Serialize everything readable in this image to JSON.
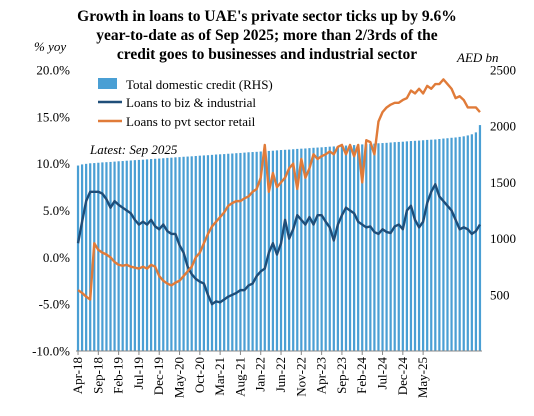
{
  "chart_data": {
    "type": "bar",
    "title": "Growth in loans to UAE's private sector ticks up by 9.6% year-to-date as of Sep 2025; more than 2/3rds of the credit goes to  businesses and industrial sector",
    "title_lines": [
      "Growth in loans to UAE's private sector ticks up by 9.6%",
      "year-to-date as of Sep 2025; more than 2/3rds of the",
      "credit goes to  businesses and industrial sector"
    ],
    "y_left_unit": "% yoy",
    "y_right_unit": "AED bn",
    "note": "Latest: Sep 2025",
    "y_left": {
      "min": -10,
      "max": 20,
      "ticks": [
        "20.0%",
        "15.0%",
        "10.0%",
        "5.0%",
        "0.0%",
        "-5.0%",
        "-10.0%"
      ],
      "tick_values": [
        20,
        15,
        10,
        5,
        0,
        -5,
        -10
      ]
    },
    "y_right": {
      "min": 0,
      "max": 2500,
      "ticks": [
        "2500",
        "2000",
        "1500",
        "1000",
        "500"
      ],
      "tick_values": [
        2500,
        2000,
        1500,
        1000,
        500
      ]
    },
    "x_ticks": [
      "Apr-18",
      "Sep-18",
      "Feb-19",
      "Jul-19",
      "Dec-19",
      "May-20",
      "Oct-20",
      "Mar-21",
      "Aug-21",
      "Jan-22",
      "Jun-22",
      "Nov-22",
      "Apr-23",
      "Sep-23",
      "Feb-24",
      "Jul-24",
      "Dec-24",
      "May-25"
    ],
    "x_start": "Apr-18",
    "x_end": "Sep-25",
    "legend": [
      "Total domestic credit (RHS)",
      "Loans to biz & industrial",
      "Loans to pvt sector retail"
    ],
    "colors": {
      "bars": "#4a9fd4",
      "biz": "#1f4e79",
      "retail": "#e07b39"
    },
    "series": [
      {
        "name": "Total domestic credit (RHS)",
        "axis": "right",
        "values": [
          1650,
          1660,
          1665,
          1670,
          1672,
          1675,
          1678,
          1680,
          1682,
          1685,
          1688,
          1690,
          1693,
          1695,
          1698,
          1700,
          1702,
          1705,
          1708,
          1710,
          1712,
          1715,
          1718,
          1720,
          1723,
          1725,
          1728,
          1730,
          1732,
          1735,
          1738,
          1740,
          1742,
          1745,
          1748,
          1750,
          1752,
          1755,
          1757,
          1760,
          1762,
          1765,
          1768,
          1770,
          1772,
          1775,
          1778,
          1780,
          1782,
          1785,
          1788,
          1790,
          1792,
          1795,
          1798,
          1800,
          1802,
          1805,
          1808,
          1810,
          1812,
          1815,
          1818,
          1820,
          1822,
          1825,
          1828,
          1830,
          1832,
          1835,
          1838,
          1840,
          1842,
          1845,
          1848,
          1850,
          1852,
          1855,
          1858,
          1860,
          1862,
          1865,
          1868,
          1870,
          1872,
          1875,
          1878,
          1880,
          1882,
          1886,
          1890,
          1893,
          1897,
          1900,
          1905,
          1910,
          1918,
          1928,
          1945,
          2010
        ]
      },
      {
        "name": "Loans to biz & industrial",
        "axis": "left",
        "values": [
          1.5,
          3.8,
          6.0,
          7.0,
          7.0,
          7.0,
          6.8,
          6.2,
          5.3,
          6.0,
          5.6,
          5.3,
          5.0,
          4.7,
          4.0,
          3.5,
          3.8,
          3.5,
          4.0,
          3.3,
          3.0,
          3.5,
          2.8,
          2.5,
          2.5,
          1.3,
          0.5,
          -1.0,
          -1.8,
          -2.3,
          -2.6,
          -2.8,
          -4.0,
          -5.0,
          -4.7,
          -4.8,
          -4.5,
          -4.2,
          -4.0,
          -3.8,
          -3.5,
          -3.5,
          -3.0,
          -2.8,
          -2.0,
          -1.5,
          -1.2,
          0.5,
          1.5,
          0.3,
          1.5,
          4.0,
          2.0,
          3.0,
          4.5,
          4.0,
          3.5,
          4.3,
          3.5,
          4.5,
          4.5,
          3.8,
          3.2,
          1.8,
          3.5,
          4.5,
          5.3,
          5.0,
          4.7,
          3.8,
          3.5,
          3.2,
          3.3,
          2.7,
          2.5,
          3.0,
          2.7,
          2.6,
          3.3,
          3.5,
          3.0,
          5.0,
          5.5,
          4.0,
          3.2,
          3.8,
          5.8,
          7.0,
          7.8,
          6.5,
          6.0,
          5.5,
          5.0,
          4.0,
          3.0,
          3.2,
          3.0,
          2.5,
          2.8,
          3.5
        ]
      },
      {
        "name": "Loans to pvt sector retail",
        "axis": "left",
        "values": [
          -3.5,
          -3.8,
          -4.2,
          -4.5,
          1.5,
          0.8,
          0.5,
          0.3,
          0.0,
          -0.5,
          -0.8,
          -0.9,
          -0.8,
          -1.0,
          -1.1,
          -1.2,
          -1.0,
          -1.2,
          -0.8,
          -1.0,
          -2.0,
          -2.5,
          -2.8,
          -3.0,
          -2.7,
          -2.5,
          -2.0,
          -1.5,
          -1.0,
          0.0,
          0.5,
          1.5,
          2.5,
          3.3,
          3.8,
          4.3,
          4.8,
          5.5,
          5.8,
          6.0,
          6.0,
          6.3,
          6.5,
          7.0,
          7.3,
          8.5,
          12.0,
          7.0,
          9.0,
          7.5,
          8.0,
          8.5,
          9.5,
          10.0,
          7.3,
          10.5,
          8.5,
          9.5,
          11.0,
          10.5,
          10.8,
          11.0,
          11.3,
          11.0,
          11.8,
          12.0,
          11.0,
          12.0,
          10.8,
          12.0,
          8.0,
          12.5,
          12.3,
          11.0,
          14.5,
          15.5,
          16.0,
          16.3,
          16.5,
          16.5,
          16.8,
          17.0,
          17.8,
          17.5,
          18.0,
          17.5,
          18.3,
          18.0,
          18.5,
          18.5,
          19.0,
          18.5,
          18.0,
          17.0,
          17.2,
          16.8,
          16.0,
          16.0,
          16.0,
          15.5
        ]
      }
    ]
  }
}
